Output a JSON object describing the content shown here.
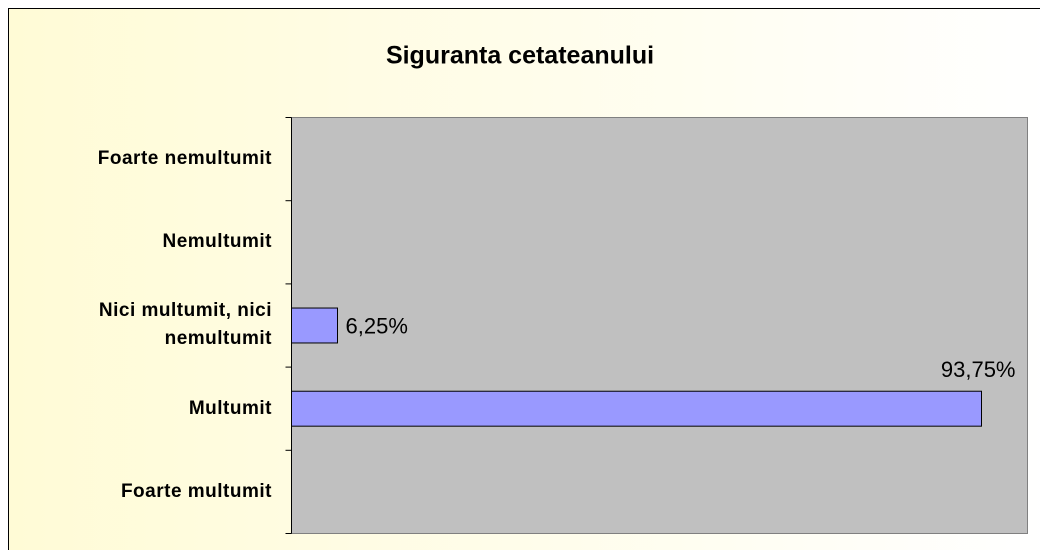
{
  "chart_data": {
    "type": "bar",
    "orientation": "horizontal",
    "title": "Siguranta cetateanului",
    "categories": [
      "Foarte nemultumit",
      "Nemultumit",
      "Nici multumit, nici nemultumit",
      "Multumit",
      "Foarte multumit"
    ],
    "values": [
      null,
      null,
      6.25,
      93.75,
      null
    ],
    "value_labels": [
      null,
      null,
      "6,25%",
      "93,75%",
      null
    ],
    "color": "#9999ff",
    "xlim": [
      0,
      100
    ]
  }
}
